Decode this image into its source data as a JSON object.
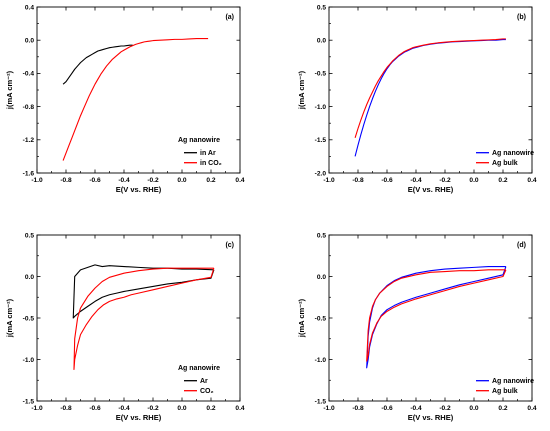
{
  "chart_data": [
    {
      "panel": "(a)",
      "type": "line",
      "xlabel": "E(V vs. RHE)",
      "ylabel": "j(mA cm⁻²)",
      "xlim": [
        -1.0,
        0.4
      ],
      "ylim": [
        -1.6,
        0.4
      ],
      "xticks": [
        -1.0,
        -0.8,
        -0.6,
        -0.4,
        -0.2,
        0.0,
        0.2,
        0.4
      ],
      "yticks": [
        -1.6,
        -1.2,
        -0.8,
        -0.4,
        0.0,
        0.4
      ],
      "xtick_labels": [
        "-1.0",
        "-0.8",
        "-0.6",
        "-0.4",
        "-0.2",
        "0.0",
        "0.2",
        "0.4"
      ],
      "ytick_labels": [
        "-1.6",
        "-1.2",
        "-0.8",
        "-0.4",
        "0.0",
        "0.4"
      ],
      "legend_title": "Ag nanowire",
      "legend_position": "bottom-right",
      "series": [
        {
          "name": "in Ar",
          "color": "#000000",
          "x": [
            -0.82,
            -0.8,
            -0.78,
            -0.76,
            -0.74,
            -0.72,
            -0.7,
            -0.68,
            -0.66,
            -0.64,
            -0.62,
            -0.6,
            -0.58,
            -0.56,
            -0.54,
            -0.52,
            -0.5,
            -0.48,
            -0.46,
            -0.44,
            -0.42,
            -0.4,
            -0.38,
            -0.36,
            -0.34
          ],
          "y": [
            -0.53,
            -0.5,
            -0.45,
            -0.4,
            -0.35,
            -0.31,
            -0.27,
            -0.24,
            -0.21,
            -0.19,
            -0.17,
            -0.15,
            -0.13,
            -0.12,
            -0.11,
            -0.1,
            -0.09,
            -0.085,
            -0.08,
            -0.075,
            -0.07,
            -0.07,
            -0.065,
            -0.06,
            -0.06
          ]
        },
        {
          "name": "in CO₂",
          "color": "#ff0000",
          "x": [
            -0.82,
            -0.8,
            -0.78,
            -0.76,
            -0.74,
            -0.72,
            -0.7,
            -0.68,
            -0.66,
            -0.64,
            -0.62,
            -0.6,
            -0.58,
            -0.56,
            -0.54,
            -0.52,
            -0.5,
            -0.48,
            -0.46,
            -0.44,
            -0.42,
            -0.4,
            -0.38,
            -0.36,
            -0.34,
            -0.32,
            -0.3,
            -0.28,
            -0.26,
            -0.24,
            -0.22,
            -0.2,
            -0.15,
            -0.1,
            -0.05,
            0.0,
            0.05,
            0.1,
            0.15,
            0.18
          ],
          "y": [
            -1.45,
            -1.36,
            -1.27,
            -1.18,
            -1.09,
            -1.0,
            -0.91,
            -0.83,
            -0.75,
            -0.67,
            -0.6,
            -0.53,
            -0.47,
            -0.41,
            -0.36,
            -0.31,
            -0.27,
            -0.23,
            -0.2,
            -0.17,
            -0.14,
            -0.12,
            -0.1,
            -0.08,
            -0.065,
            -0.05,
            -0.04,
            -0.03,
            -0.02,
            -0.015,
            -0.01,
            -0.005,
            0.0,
            0.005,
            0.01,
            0.01,
            0.015,
            0.02,
            0.02,
            0.02
          ]
        }
      ]
    },
    {
      "panel": "(b)",
      "type": "line",
      "xlabel": "E(V vs. RHE)",
      "ylabel": "j(mA cm⁻²)",
      "xlim": [
        -1.0,
        0.4
      ],
      "ylim": [
        -2.0,
        0.5
      ],
      "xticks": [
        -1.0,
        -0.8,
        -0.6,
        -0.4,
        -0.2,
        0.0,
        0.2,
        0.4
      ],
      "yticks": [
        -2.0,
        -1.5,
        -1.0,
        -0.5,
        0.0,
        0.5
      ],
      "xtick_labels": [
        "-1.0",
        "-0.8",
        "-0.6",
        "-0.4",
        "-0.2",
        "0.0",
        "0.2",
        "0.4"
      ],
      "ytick_labels": [
        "-2.0",
        "-1.5",
        "-1.0",
        "-0.5",
        "0.0",
        "0.5"
      ],
      "legend_title": "",
      "legend_position": "bottom-right",
      "series": [
        {
          "name": "Ag nanowire",
          "color": "#0000ff",
          "x": [
            -0.82,
            -0.8,
            -0.78,
            -0.76,
            -0.74,
            -0.72,
            -0.7,
            -0.68,
            -0.66,
            -0.64,
            -0.62,
            -0.6,
            -0.58,
            -0.56,
            -0.54,
            -0.52,
            -0.5,
            -0.48,
            -0.46,
            -0.44,
            -0.42,
            -0.4,
            -0.35,
            -0.3,
            -0.25,
            -0.2,
            -0.15,
            -0.1,
            -0.05,
            0.0,
            0.05,
            0.1,
            0.15,
            0.2,
            0.22
          ],
          "y": [
            -1.75,
            -1.58,
            -1.42,
            -1.27,
            -1.13,
            -1.0,
            -0.88,
            -0.77,
            -0.67,
            -0.58,
            -0.5,
            -0.43,
            -0.37,
            -0.32,
            -0.28,
            -0.24,
            -0.21,
            -0.18,
            -0.16,
            -0.14,
            -0.12,
            -0.11,
            -0.08,
            -0.06,
            -0.045,
            -0.035,
            -0.025,
            -0.02,
            -0.015,
            -0.01,
            -0.005,
            0.0,
            0.0,
            0.01,
            0.01
          ]
        },
        {
          "name": "Ag bulk",
          "color": "#ff0000",
          "x": [
            -0.82,
            -0.8,
            -0.78,
            -0.76,
            -0.74,
            -0.72,
            -0.7,
            -0.68,
            -0.66,
            -0.64,
            -0.62,
            -0.6,
            -0.58,
            -0.56,
            -0.54,
            -0.52,
            -0.5,
            -0.48,
            -0.46,
            -0.44,
            -0.42,
            -0.4,
            -0.35,
            -0.3,
            -0.25,
            -0.2,
            -0.15,
            -0.1,
            -0.05,
            0.0,
            0.05,
            0.1,
            0.15,
            0.2,
            0.22
          ],
          "y": [
            -1.47,
            -1.33,
            -1.2,
            -1.08,
            -0.97,
            -0.87,
            -0.78,
            -0.69,
            -0.61,
            -0.54,
            -0.47,
            -0.41,
            -0.36,
            -0.31,
            -0.27,
            -0.23,
            -0.2,
            -0.17,
            -0.15,
            -0.13,
            -0.11,
            -0.1,
            -0.075,
            -0.055,
            -0.04,
            -0.03,
            -0.02,
            -0.015,
            -0.01,
            -0.005,
            0.0,
            0.005,
            0.01,
            0.02,
            0.02
          ]
        }
      ]
    },
    {
      "panel": "(c)",
      "type": "line",
      "xlabel": "E(V vs. RHE)",
      "ylabel": "j(mA cm⁻²)",
      "xlim": [
        -1.0,
        0.4
      ],
      "ylim": [
        -1.5,
        0.5
      ],
      "xticks": [
        -1.0,
        -0.8,
        -0.6,
        -0.4,
        -0.2,
        0.0,
        0.2,
        0.4
      ],
      "yticks": [
        -1.5,
        -1.0,
        -0.5,
        0.0,
        0.5
      ],
      "xtick_labels": [
        "-1.0",
        "-0.8",
        "-0.6",
        "-0.4",
        "-0.2",
        "0.0",
        "0.2",
        "0.4"
      ],
      "ytick_labels": [
        "-1.5",
        "-1.0",
        "-0.5",
        "0.0",
        "0.5"
      ],
      "legend_title": "Ag nanowire",
      "legend_position": "bottom-right",
      "series": [
        {
          "name": "Ar",
          "color": "#000000",
          "x": [
            0.22,
            0.1,
            0.0,
            -0.1,
            -0.2,
            -0.3,
            -0.4,
            -0.5,
            -0.55,
            -0.6,
            -0.65,
            -0.7,
            -0.74,
            -0.75,
            -0.74,
            -0.7,
            -0.65,
            -0.6,
            -0.55,
            -0.5,
            -0.45,
            -0.4,
            -0.3,
            -0.2,
            -0.1,
            0.0,
            0.1,
            0.2,
            0.22
          ],
          "y": [
            0.08,
            0.09,
            0.09,
            0.1,
            0.1,
            0.11,
            0.12,
            0.13,
            0.12,
            0.14,
            0.11,
            0.08,
            0.0,
            -0.5,
            -0.48,
            -0.42,
            -0.36,
            -0.3,
            -0.25,
            -0.22,
            -0.2,
            -0.18,
            -0.15,
            -0.12,
            -0.09,
            -0.07,
            -0.04,
            -0.02,
            0.08
          ]
        },
        {
          "name": "CO₂",
          "color": "#ff0000",
          "x": [
            0.22,
            0.1,
            0.0,
            -0.1,
            -0.2,
            -0.3,
            -0.4,
            -0.5,
            -0.55,
            -0.6,
            -0.65,
            -0.7,
            -0.72,
            -0.74,
            -0.745,
            -0.74,
            -0.72,
            -0.7,
            -0.66,
            -0.62,
            -0.58,
            -0.54,
            -0.5,
            -0.45,
            -0.4,
            -0.35,
            -0.3,
            -0.2,
            -0.1,
            0.0,
            0.1,
            0.2,
            0.22
          ],
          "y": [
            0.1,
            0.1,
            0.1,
            0.1,
            0.09,
            0.07,
            0.04,
            -0.01,
            -0.06,
            -0.14,
            -0.24,
            -0.38,
            -0.5,
            -0.75,
            -1.12,
            -1.0,
            -0.83,
            -0.7,
            -0.58,
            -0.48,
            -0.4,
            -0.34,
            -0.3,
            -0.27,
            -0.25,
            -0.22,
            -0.2,
            -0.16,
            -0.12,
            -0.08,
            -0.04,
            -0.01,
            0.1
          ]
        }
      ]
    },
    {
      "panel": "(d)",
      "type": "line",
      "xlabel": "E(V vs. RHE)",
      "ylabel": "j(mA cm⁻²)",
      "xlim": [
        -1.0,
        0.4
      ],
      "ylim": [
        -1.5,
        0.5
      ],
      "xticks": [
        -1.0,
        -0.8,
        -0.6,
        -0.4,
        -0.2,
        0.0,
        0.2,
        0.4
      ],
      "yticks": [
        -1.5,
        -1.0,
        -0.5,
        0.0,
        0.5
      ],
      "xtick_labels": [
        "-1.0",
        "-0.8",
        "-0.6",
        "-0.4",
        "-0.2",
        "0.0",
        "0.2",
        "0.4"
      ],
      "ytick_labels": [
        "-1.5",
        "-1.0",
        "-0.5",
        "0.0",
        "0.5"
      ],
      "legend_title": "",
      "legend_position": "bottom-right",
      "series": [
        {
          "name": "Ag nanowire",
          "color": "#0000ff",
          "x": [
            0.22,
            0.1,
            0.0,
            -0.1,
            -0.2,
            -0.3,
            -0.4,
            -0.5,
            -0.55,
            -0.6,
            -0.65,
            -0.68,
            -0.7,
            -0.72,
            -0.73,
            -0.74,
            -0.73,
            -0.72,
            -0.7,
            -0.67,
            -0.64,
            -0.6,
            -0.55,
            -0.5,
            -0.45,
            -0.4,
            -0.3,
            -0.2,
            -0.1,
            0.0,
            0.1,
            0.2,
            0.22
          ],
          "y": [
            0.12,
            0.12,
            0.11,
            0.1,
            0.09,
            0.07,
            0.04,
            -0.01,
            -0.05,
            -0.11,
            -0.2,
            -0.28,
            -0.38,
            -0.55,
            -0.72,
            -1.1,
            -1.0,
            -0.85,
            -0.7,
            -0.57,
            -0.47,
            -0.4,
            -0.35,
            -0.31,
            -0.28,
            -0.25,
            -0.2,
            -0.15,
            -0.1,
            -0.06,
            -0.02,
            0.02,
            0.12
          ]
        },
        {
          "name": "Ag bulk",
          "color": "#ff0000",
          "x": [
            0.22,
            0.1,
            0.0,
            -0.1,
            -0.2,
            -0.3,
            -0.4,
            -0.5,
            -0.55,
            -0.6,
            -0.65,
            -0.68,
            -0.7,
            -0.72,
            -0.73,
            -0.74,
            -0.73,
            -0.72,
            -0.7,
            -0.67,
            -0.64,
            -0.6,
            -0.55,
            -0.5,
            -0.45,
            -0.4,
            -0.3,
            -0.2,
            -0.1,
            0.0,
            0.1,
            0.2,
            0.22
          ],
          "y": [
            0.08,
            0.08,
            0.07,
            0.07,
            0.06,
            0.05,
            0.02,
            -0.02,
            -0.06,
            -0.12,
            -0.2,
            -0.28,
            -0.36,
            -0.5,
            -0.65,
            -1.02,
            -0.95,
            -0.82,
            -0.68,
            -0.56,
            -0.48,
            -0.42,
            -0.37,
            -0.33,
            -0.3,
            -0.27,
            -0.22,
            -0.17,
            -0.12,
            -0.08,
            -0.04,
            0.0,
            0.08
          ]
        }
      ]
    }
  ]
}
